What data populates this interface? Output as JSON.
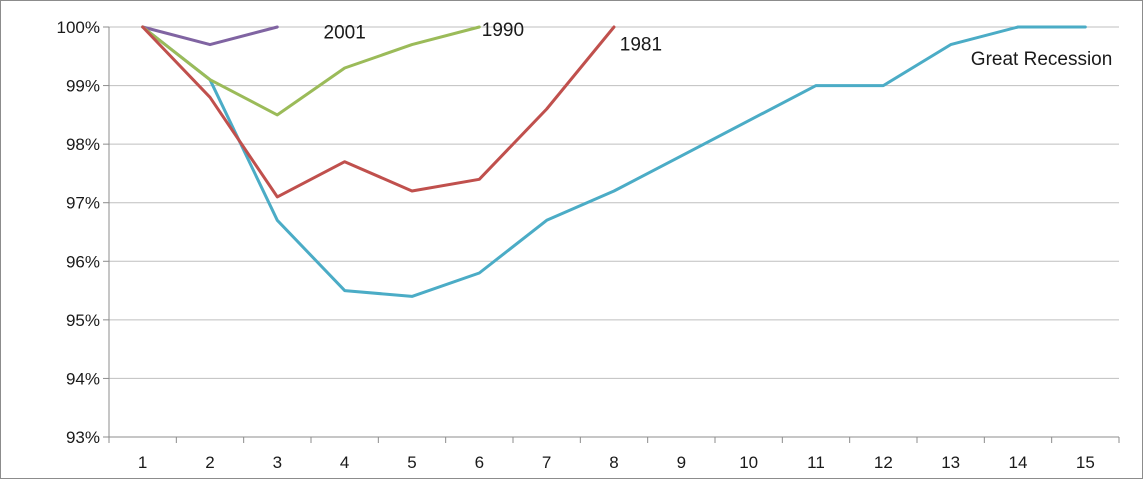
{
  "chart_data": {
    "type": "line",
    "title": "",
    "xlabel": "",
    "ylabel": "",
    "x": [
      1,
      2,
      3,
      4,
      5,
      6,
      7,
      8,
      9,
      10,
      11,
      12,
      13,
      14,
      15
    ],
    "xlim": [
      0.5,
      15.5
    ],
    "ylim": [
      93,
      100
    ],
    "y_ticks": [
      "93%",
      "94%",
      "95%",
      "96%",
      "97%",
      "98%",
      "99%",
      "100%"
    ],
    "grid": true,
    "legend": "none",
    "series": [
      {
        "name": "2001",
        "color": "#8064a2",
        "x": [
          1,
          2,
          3
        ],
        "values": [
          100,
          99.7,
          100
        ],
        "label_at": [
          4.0,
          99.8
        ]
      },
      {
        "name": "1990",
        "color": "#9bbb59",
        "x": [
          1,
          2,
          3,
          4,
          5,
          6
        ],
        "values": [
          100,
          99.1,
          98.5,
          99.3,
          99.7,
          100
        ],
        "label_at": [
          6.35,
          99.85
        ]
      },
      {
        "name": "1981",
        "color": "#c0504d",
        "x": [
          1,
          2,
          3,
          4,
          5,
          6,
          7,
          8
        ],
        "values": [
          100,
          98.8,
          97.1,
          97.7,
          97.2,
          97.4,
          98.6,
          100
        ],
        "label_at": [
          8.4,
          99.6
        ]
      },
      {
        "name": "Great Recession",
        "color": "#4bacc6",
        "x": [
          1,
          2,
          3,
          4,
          5,
          6,
          7,
          8,
          9,
          10,
          11,
          12,
          13,
          14,
          15
        ],
        "values": [
          100,
          99.1,
          96.7,
          95.5,
          95.4,
          95.8,
          96.7,
          97.2,
          97.8,
          98.4,
          99.0,
          99.0,
          99.7,
          100,
          100
        ],
        "label_at": [
          14.35,
          99.35
        ]
      }
    ]
  }
}
